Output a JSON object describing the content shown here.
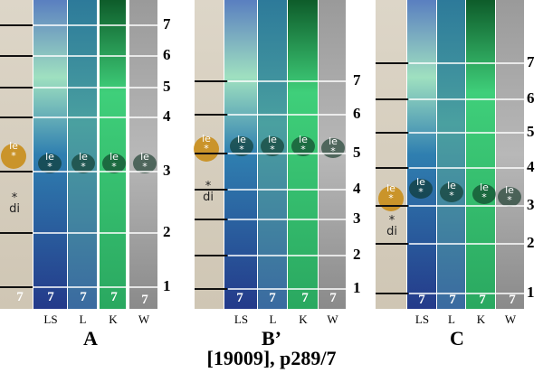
{
  "panels": [
    {
      "label": "A",
      "scale": [
        "7",
        "6",
        "5",
        "4",
        "3",
        "2",
        "1"
      ],
      "lanes": [
        "LS",
        "L",
        "K",
        "W"
      ],
      "spots": [
        "le",
        "le",
        "le",
        "le",
        "le",
        "di"
      ],
      "bottom": [
        "7",
        "7",
        "7",
        "7",
        "7"
      ]
    },
    {
      "label": "B’",
      "scale": [
        "7",
        "6",
        "5",
        "4",
        "3",
        "2",
        "1"
      ],
      "lanes": [
        "LS",
        "L",
        "K",
        "W"
      ],
      "spots": [
        "le",
        "le",
        "le",
        "le",
        "le",
        "di"
      ],
      "bottom": [
        "7",
        "7",
        "7",
        "7"
      ]
    },
    {
      "label": "C",
      "scale": [
        "7",
        "6",
        "5",
        "4",
        "3",
        "2",
        "1"
      ],
      "lanes": [
        "LS",
        "L",
        "K",
        "W"
      ],
      "spots": [
        "le",
        "le",
        "le",
        "le",
        "le",
        "di"
      ],
      "bottom": [
        "7",
        "7",
        "7",
        "7"
      ]
    }
  ],
  "caption": "[19009], p289/7"
}
